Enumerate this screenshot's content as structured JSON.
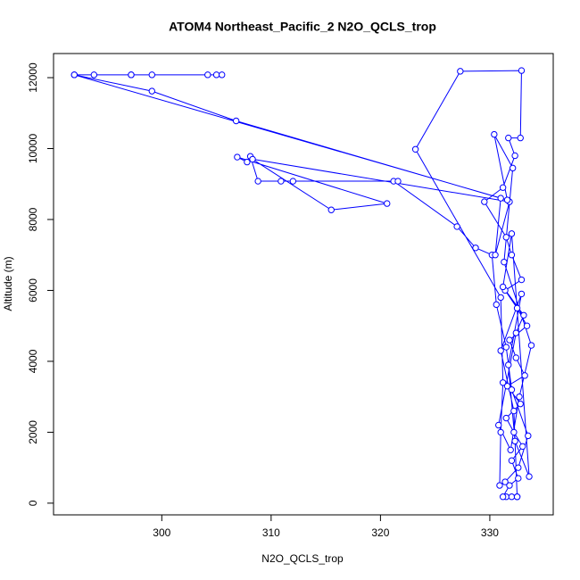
{
  "chart_data": {
    "type": "line",
    "markers": true,
    "title": "ATOM4 Northeast_Pacific_2 N2O_QCLS_trop",
    "x_label": "N2O_QCLS_trop",
    "y_label": "Altitude (m)",
    "color": "#0000ff",
    "xlim": [
      290.1,
      335.8
    ],
    "xticks": [
      300,
      310,
      320,
      330
    ],
    "ylim": [
      -330,
      12680
    ],
    "yticks": [
      0,
      2000,
      4000,
      6000,
      8000,
      10000,
      12000
    ],
    "x": [
      331.5,
      332.0,
      332.5,
      331.2,
      331.8,
      332.6,
      332.0,
      333.0,
      332.2,
      331.5,
      332.8,
      331.6,
      333.2,
      332.4,
      331.8,
      333.4,
      332.5,
      331.4,
      332.9,
      332.0,
      331.5,
      329.5,
      331.2,
      332.3,
      331.7,
      332.8,
      332.9,
      327.3,
      323.2,
      331.0,
      331.2,
      331.0,
      330.9,
      331.4,
      332.6,
      333.5,
      332.0,
      331.5,
      330.6,
      330.2,
      328.7,
      327.0,
      321.2,
      321.6,
      312.0,
      310.9,
      308.8,
      308.1,
      307.8,
      306.9,
      320.6,
      315.5,
      308.3,
      331.8,
      330.5,
      331.0,
      306.8,
      299.1,
      292.0,
      293.8,
      297.2,
      299.1,
      304.2,
      305.0,
      305.5,
      297.2,
      292.0,
      331.6,
      330.4,
      332.1,
      331.3,
      333.8,
      332.7,
      331.9,
      330.8,
      332.4,
      333.1,
      331.2,
      332.0,
      333.6,
      332.3,
      331.7,
      332.9,
      331.0,
      332.2,
      332.5
    ],
    "values": [
      180,
      180,
      180,
      180,
      500,
      700,
      1200,
      1600,
      2000,
      2400,
      2800,
      3300,
      3600,
      4100,
      4600,
      5000,
      5500,
      6000,
      6300,
      7000,
      7500,
      8500,
      8900,
      9800,
      10300,
      10300,
      12200,
      12180,
      9980,
      5800,
      3400,
      2000,
      500,
      600,
      1000,
      1900,
      3200,
      4400,
      5600,
      7000,
      7200,
      7800,
      9080,
      9080,
      9080,
      9080,
      9080,
      9780,
      9620,
      9760,
      8450,
      8270,
      9700,
      8500,
      7000,
      8600,
      10780,
      11620,
      12080,
      12080,
      12080,
      12080,
      12080,
      12080,
      12080,
      12080,
      12080,
      8550,
      10400,
      9450,
      6800,
      4450,
      3000,
      1500,
      2200,
      4800,
      5300,
      6100,
      7600,
      750,
      1750,
      3900,
      5900,
      4300,
      2600,
      180
    ]
  }
}
